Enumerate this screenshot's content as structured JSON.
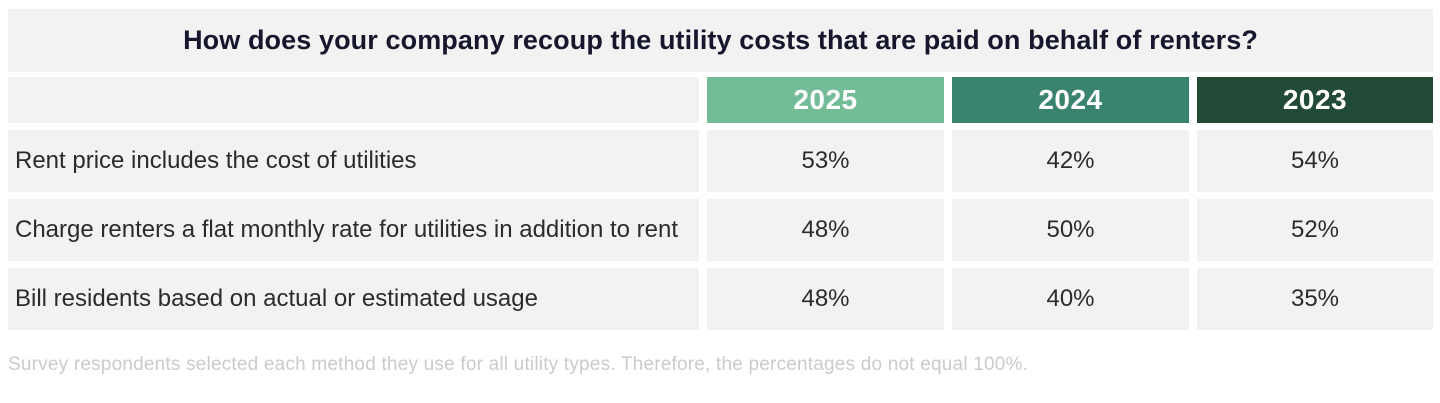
{
  "title": "How does your company recoup the utility costs that are paid on behalf of renters?",
  "footnote": "Survey respondents selected each method they use for all utility types. Therefore, the percentages do not equal 100%.",
  "colors": {
    "block_gray": "#F3F2F3",
    "title_text": "#16172C",
    "body_text": "#2B2B2E",
    "footnote_text": "#C9CBCE",
    "year_2025": "#73BC97",
    "year_2024": "#3A836E",
    "year_2023": "#214B37"
  },
  "table": {
    "columns": [
      {
        "label": "2025",
        "color": "#73BC97"
      },
      {
        "label": "2024",
        "color": "#3A836E"
      },
      {
        "label": "2023",
        "color": "#214B37"
      }
    ],
    "rows": [
      {
        "label": "Rent price includes the cost of utilities",
        "values": [
          "53%",
          "42%",
          "54%"
        ]
      },
      {
        "label": "Charge renters a flat monthly rate for utilities in addition to rent",
        "values": [
          "48%",
          "50%",
          "52%"
        ]
      },
      {
        "label": "Bill residents based on actual or estimated usage",
        "values": [
          "48%",
          "40%",
          "35%"
        ]
      }
    ]
  },
  "chart_data": {
    "type": "table",
    "title": "How does your company recoup the utility costs that are paid on behalf of renters?",
    "categories": [
      "Rent price includes the cost of utilities",
      "Charge renters a flat monthly rate for utilities in addition to rent",
      "Bill residents based on actual or estimated usage"
    ],
    "series": [
      {
        "name": "2025",
        "values": [
          53,
          48,
          48
        ]
      },
      {
        "name": "2024",
        "values": [
          42,
          50,
          40
        ]
      },
      {
        "name": "2023",
        "values": [
          54,
          52,
          35
        ]
      }
    ],
    "unit": "%",
    "note": "Survey respondents selected each method they use for all utility types. Therefore, the percentages do not equal 100%."
  }
}
